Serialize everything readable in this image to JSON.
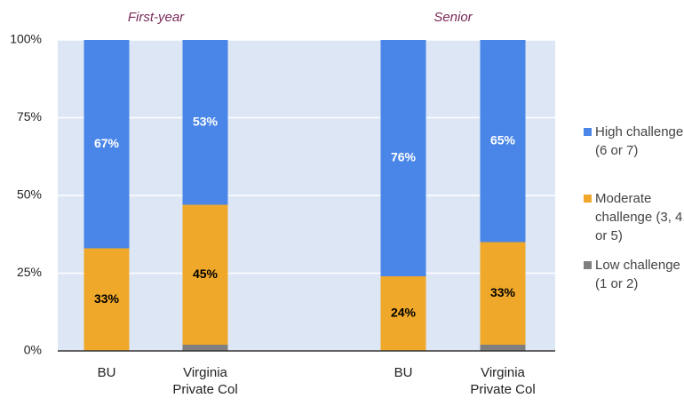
{
  "chart_data": {
    "type": "stacked_bar",
    "groups": [
      "First-year",
      "Senior"
    ],
    "categories": [
      "BU",
      "Virginia Private Col",
      "BU",
      "Virginia Private Col"
    ],
    "series": [
      {
        "name": "Low challenge (1 or 2)",
        "color": "#7f7f7f",
        "values": [
          0,
          2,
          0,
          2
        ]
      },
      {
        "name": "Moderate challenge (3, 4, or 5)",
        "color": "#f0a82a",
        "values": [
          33,
          45,
          24,
          33
        ],
        "value_labels": [
          "33%",
          "45%",
          "24%",
          "33%"
        ],
        "label_color": "#000000"
      },
      {
        "name": "High challenge (6 or 7)",
        "color": "#4a86e8",
        "values": [
          67,
          53,
          76,
          65
        ],
        "value_labels": [
          "67%",
          "53%",
          "76%",
          "65%"
        ],
        "label_color": "#ffffff"
      }
    ],
    "ylim": [
      0,
      100
    ],
    "yticks": [
      {
        "value": 0,
        "label": "0%"
      },
      {
        "value": 25,
        "label": "25%"
      },
      {
        "value": 50,
        "label": "50%"
      },
      {
        "value": 75,
        "label": "75%"
      },
      {
        "value": 100,
        "label": "100%"
      }
    ],
    "legend": "right"
  }
}
